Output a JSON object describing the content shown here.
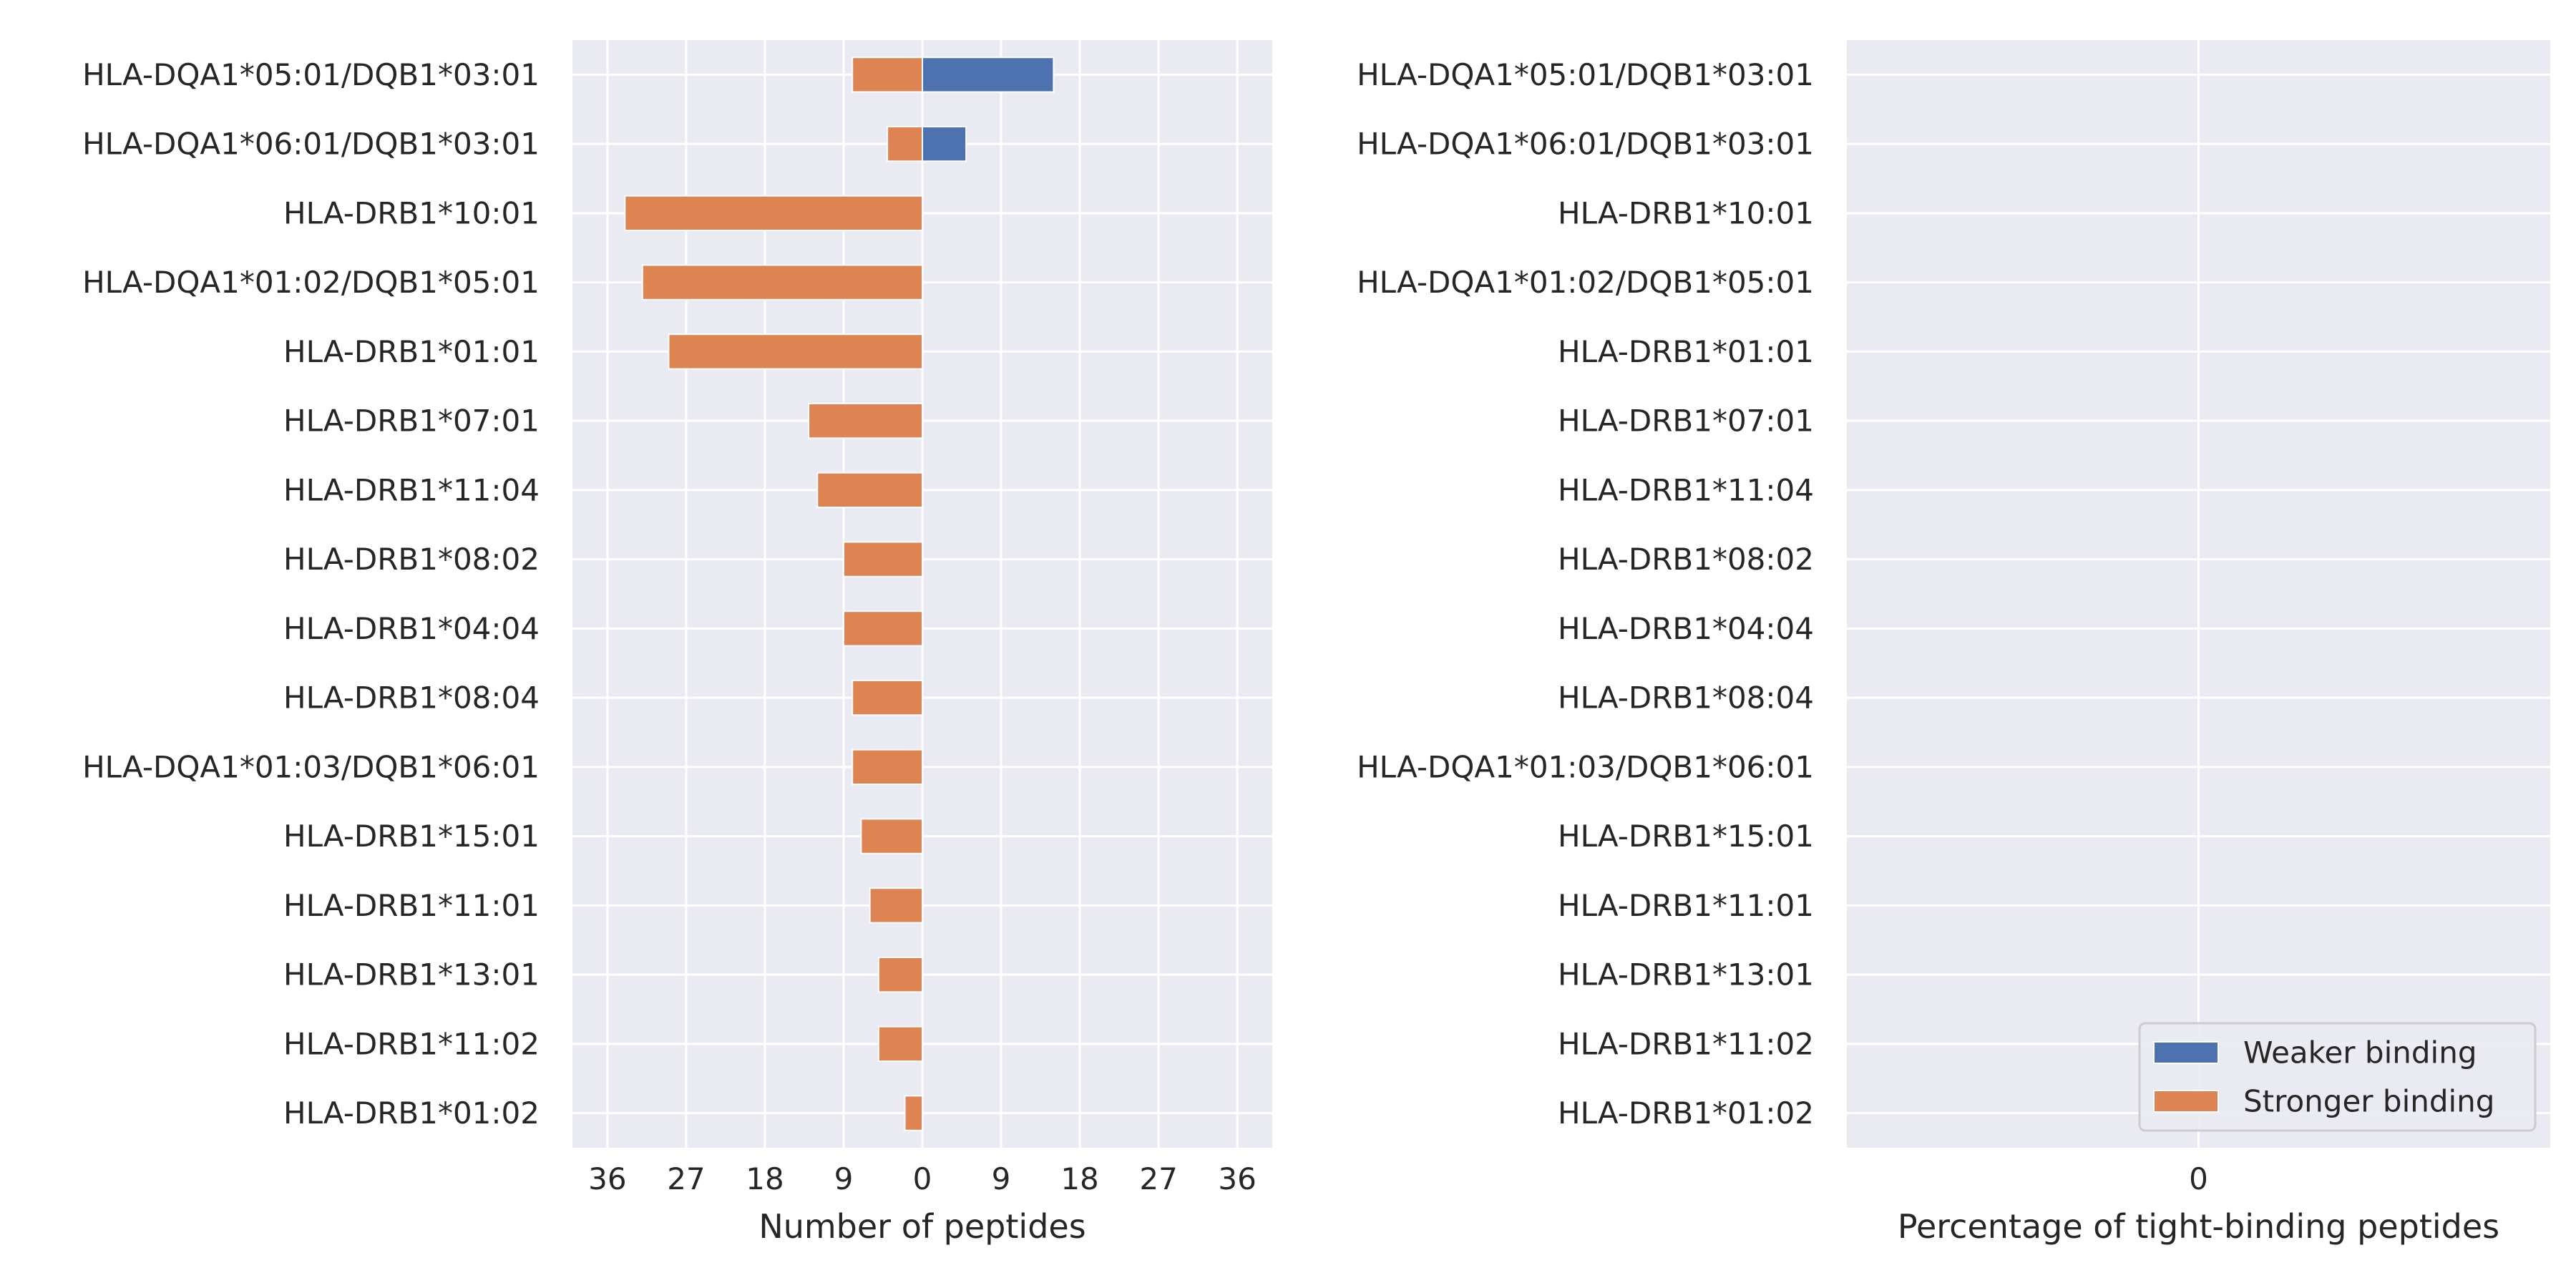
{
  "chart_data": [
    {
      "type": "bar",
      "orientation": "horizontal",
      "stacked": "diverging",
      "title": "",
      "xlabel": "Number of peptides",
      "ylabel": "",
      "xlim": [
        -40,
        40
      ],
      "xticks": [
        -36,
        -27,
        -18,
        -9,
        0,
        9,
        18,
        27,
        36
      ],
      "xtick_labels": [
        "36",
        "27",
        "18",
        "9",
        "0",
        "9",
        "18",
        "27",
        "36"
      ],
      "grid": true,
      "categories": [
        "HLA-DQA1*05:01/DQB1*03:01",
        "HLA-DQA1*06:01/DQB1*03:01",
        "HLA-DRB1*10:01",
        "HLA-DQA1*01:02/DQB1*05:01",
        "HLA-DRB1*01:01",
        "HLA-DRB1*07:01",
        "HLA-DRB1*11:04",
        "HLA-DRB1*08:02",
        "HLA-DRB1*04:04",
        "HLA-DRB1*08:04",
        "HLA-DQA1*01:03/DQB1*06:01",
        "HLA-DRB1*15:01",
        "HLA-DRB1*11:01",
        "HLA-DRB1*13:01",
        "HLA-DRB1*11:02",
        "HLA-DRB1*01:02"
      ],
      "series": [
        {
          "name": "Weaker binding",
          "color": "#4c72b0",
          "side": "right",
          "values": [
            15,
            5,
            0,
            0,
            0,
            0,
            0,
            0,
            0,
            0,
            0,
            0,
            0,
            0,
            0,
            0
          ]
        },
        {
          "name": "Stronger binding",
          "color": "#dd8452",
          "side": "left",
          "values": [
            8,
            4,
            34,
            32,
            29,
            13,
            12,
            9,
            9,
            8,
            8,
            7,
            6,
            5,
            5,
            2
          ]
        }
      ]
    },
    {
      "type": "bar",
      "orientation": "horizontal",
      "title": "",
      "xlabel": "Percentage of tight-binding peptides",
      "ylabel": "",
      "xticks": [
        0
      ],
      "xtick_labels": [
        "0"
      ],
      "grid": true,
      "categories": [
        "HLA-DQA1*05:01/DQB1*03:01",
        "HLA-DQA1*06:01/DQB1*03:01",
        "HLA-DRB1*10:01",
        "HLA-DQA1*01:02/DQB1*05:01",
        "HLA-DRB1*01:01",
        "HLA-DRB1*07:01",
        "HLA-DRB1*11:04",
        "HLA-DRB1*08:02",
        "HLA-DRB1*04:04",
        "HLA-DRB1*08:04",
        "HLA-DQA1*01:03/DQB1*06:01",
        "HLA-DRB1*15:01",
        "HLA-DRB1*11:01",
        "HLA-DRB1*13:01",
        "HLA-DRB1*11:02",
        "HLA-DRB1*01:02"
      ],
      "series": [],
      "legend": {
        "placement": "lower-right",
        "entries": [
          {
            "label": "Weaker binding",
            "color": "#4c72b0"
          },
          {
            "label": "Stronger binding",
            "color": "#dd8452"
          }
        ]
      }
    }
  ],
  "style": {
    "panel_bg": "#eaeaf2",
    "grid_color": "#ffffff",
    "text_color": "#262626"
  }
}
